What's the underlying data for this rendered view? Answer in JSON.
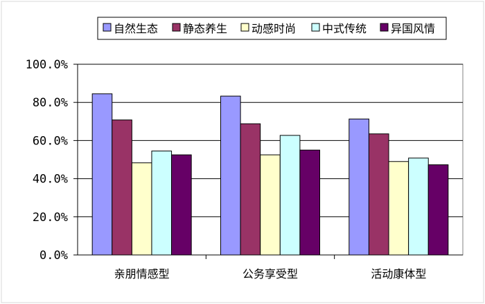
{
  "chart_data": {
    "type": "bar",
    "categories": [
      "亲朋情感型",
      "公务享受型",
      "活动康体型"
    ],
    "series": [
      {
        "name": "自然生态",
        "color": "#9999ff",
        "values": [
          84.5,
          83.3,
          71.3
        ]
      },
      {
        "name": "静态养生",
        "color": "#993366",
        "values": [
          70.8,
          68.8,
          63.5
        ]
      },
      {
        "name": "动感时尚",
        "color": "#ffffcc",
        "values": [
          48.3,
          52.5,
          49.0
        ]
      },
      {
        "name": "中式传统",
        "color": "#ccffff",
        "values": [
          54.5,
          62.7,
          50.8
        ]
      },
      {
        "name": "异国风情",
        "color": "#660066",
        "values": [
          52.5,
          55.0,
          47.3
        ]
      }
    ],
    "yticks": [
      "0.0%",
      "20.0%",
      "40.0%",
      "60.0%",
      "80.0%",
      "100.0%"
    ],
    "ylim": [
      0,
      100
    ],
    "grid": true,
    "legend_position": "top"
  }
}
